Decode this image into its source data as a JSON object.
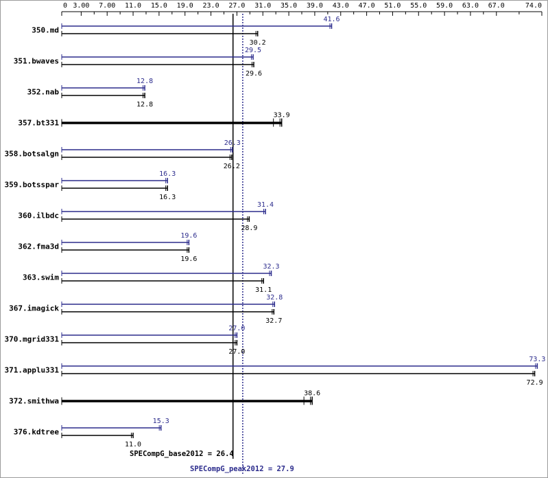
{
  "chart_data": {
    "type": "bar",
    "xlim": [
      0,
      74.0
    ],
    "x_ticks": [
      "0",
      "3.00",
      "7.00",
      "11.0",
      "15.0",
      "19.0",
      "23.0",
      "27.0",
      "31.0",
      "35.0",
      "39.0",
      "43.0",
      "47.0",
      "51.0",
      "55.0",
      "59.0",
      "63.0",
      "67.0",
      "74.0"
    ],
    "x_tick_values": [
      0,
      3,
      7,
      11,
      15,
      19,
      23,
      27,
      31,
      35,
      39,
      43,
      47,
      51,
      55,
      59,
      63,
      67,
      74
    ],
    "colors": {
      "peak": "#2b2b8c",
      "base": "#000000"
    },
    "benchmarks": [
      {
        "name": "350.md",
        "peak": 41.6,
        "base": 30.2,
        "peak_label": "41.6",
        "base_label": "30.2"
      },
      {
        "name": "351.bwaves",
        "peak": 29.5,
        "base": 29.6,
        "peak_label": "29.5",
        "base_label": "29.6"
      },
      {
        "name": "352.nab",
        "peak": 12.8,
        "base": 12.8,
        "peak_label": "12.8",
        "base_label": "12.8"
      },
      {
        "name": "357.bt331",
        "peak": null,
        "base": 33.9,
        "peak_label": "",
        "base_label": "33.9"
      },
      {
        "name": "358.botsalgn",
        "peak": 26.3,
        "base": 26.2,
        "peak_label": "26.3",
        "base_label": "26.2"
      },
      {
        "name": "359.botsspar",
        "peak": 16.3,
        "base": 16.3,
        "peak_label": "16.3",
        "base_label": "16.3"
      },
      {
        "name": "360.ilbdc",
        "peak": 31.4,
        "base": 28.9,
        "peak_label": "31.4",
        "base_label": "28.9"
      },
      {
        "name": "362.fma3d",
        "peak": 19.6,
        "base": 19.6,
        "peak_label": "19.6",
        "base_label": "19.6"
      },
      {
        "name": "363.swim",
        "peak": 32.3,
        "base": 31.1,
        "peak_label": "32.3",
        "base_label": "31.1"
      },
      {
        "name": "367.imagick",
        "peak": 32.8,
        "base": 32.7,
        "peak_label": "32.8",
        "base_label": "32.7"
      },
      {
        "name": "370.mgrid331",
        "peak": 27.0,
        "base": 27.0,
        "peak_label": "27.0",
        "base_label": "27.0"
      },
      {
        "name": "371.applu331",
        "peak": 73.3,
        "base": 72.9,
        "peak_label": "73.3",
        "base_label": "72.9"
      },
      {
        "name": "372.smithwa",
        "peak": null,
        "base": 38.6,
        "peak_label": "",
        "base_label": "38.6"
      },
      {
        "name": "376.kdtree",
        "peak": 15.3,
        "base": 11.0,
        "peak_label": "15.3",
        "base_label": "11.0"
      }
    ],
    "reference_lines": [
      {
        "kind": "base",
        "value": 26.4,
        "label": "SPECompG_base2012 = 26.4"
      },
      {
        "kind": "peak",
        "value": 27.9,
        "label": "SPECompG_peak2012 = 27.9"
      }
    ]
  }
}
